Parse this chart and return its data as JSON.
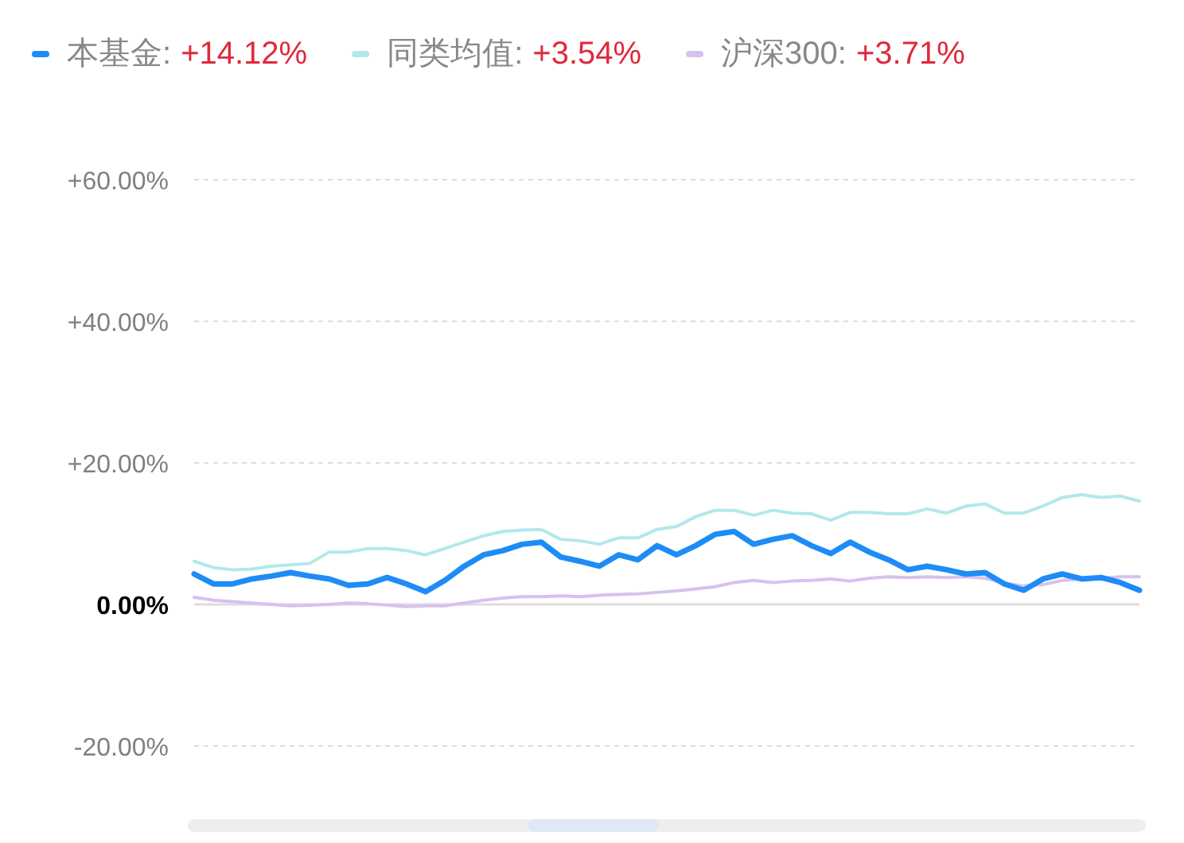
{
  "chart_data": {
    "type": "line",
    "categories": [
      null,
      null,
      null,
      null,
      null,
      null,
      null,
      null,
      null,
      null,
      null,
      null,
      null,
      null,
      null,
      null,
      null,
      null,
      null,
      null,
      null,
      null,
      null,
      null,
      null,
      null,
      null,
      null,
      null,
      null,
      null,
      null,
      null,
      null,
      null,
      null,
      null,
      null,
      null,
      null,
      null,
      null,
      null,
      null,
      null,
      null,
      null,
      null,
      null,
      null
    ],
    "series": [
      {
        "name": "本基金:",
        "color": "#1e8cf5",
        "values": [
          4.3,
          2.9,
          2.9,
          3.6,
          4.0,
          4.5,
          4.0,
          3.6,
          2.7,
          2.9,
          3.8,
          2.9,
          1.8,
          3.4,
          5.4,
          7.0,
          7.6,
          8.5,
          8.8,
          6.7,
          6.1,
          5.4,
          7.0,
          6.3,
          8.3,
          7.0,
          8.3,
          9.9,
          10.3,
          8.5,
          9.2,
          9.7,
          8.3,
          7.2,
          8.8,
          7.4,
          6.3,
          4.9,
          5.4,
          4.9,
          4.3,
          4.5,
          2.9,
          2.0,
          3.6,
          4.3,
          3.6,
          3.8,
          3.1,
          2.0
        ]
      },
      {
        "name": "同类均值:",
        "color": "#b3e8ea",
        "values": [
          6.1,
          5.2,
          4.9,
          5.0,
          5.4,
          5.6,
          5.8,
          7.4,
          7.4,
          7.9,
          7.9,
          7.6,
          7.0,
          7.9,
          8.8,
          9.7,
          10.3,
          10.5,
          10.6,
          9.2,
          9.0,
          8.5,
          9.4,
          9.4,
          10.6,
          11.0,
          12.4,
          13.3,
          13.3,
          12.6,
          13.3,
          12.9,
          12.8,
          11.9,
          13.0,
          13.0,
          12.8,
          12.8,
          13.5,
          12.9,
          13.9,
          14.2,
          12.9,
          12.9,
          13.9,
          15.1,
          15.5,
          15.1,
          15.3,
          14.6
        ]
      },
      {
        "name": "沪深300:",
        "color": "#d6c2ee",
        "values": [
          1.0,
          0.6,
          0.4,
          0.2,
          0.0,
          -0.2,
          -0.1,
          0.0,
          0.2,
          0.1,
          -0.1,
          -0.3,
          -0.2,
          -0.2,
          0.2,
          0.6,
          0.9,
          1.1,
          1.1,
          1.2,
          1.1,
          1.3,
          1.4,
          1.5,
          1.7,
          1.9,
          2.2,
          2.5,
          3.1,
          3.4,
          3.1,
          3.3,
          3.4,
          3.6,
          3.3,
          3.7,
          3.9,
          3.8,
          3.9,
          3.8,
          3.9,
          3.7,
          3.0,
          2.6,
          2.8,
          3.4,
          3.6,
          3.7,
          3.9,
          3.9
        ]
      }
    ],
    "annotations": [
      "+14.12%",
      "+3.54%",
      "+3.71%"
    ],
    "ylim": [
      -20,
      60
    ],
    "yticks": [
      {
        "value": 60,
        "label": "+60.00%"
      },
      {
        "value": 40,
        "label": "+40.00%"
      },
      {
        "value": 20,
        "label": "+20.00%"
      },
      {
        "value": 0,
        "label": "0.00%"
      },
      {
        "value": -20,
        "label": "-20.00%"
      }
    ],
    "grid": "y",
    "legend": "top",
    "marker": "none",
    "line_style": "solid"
  }
}
